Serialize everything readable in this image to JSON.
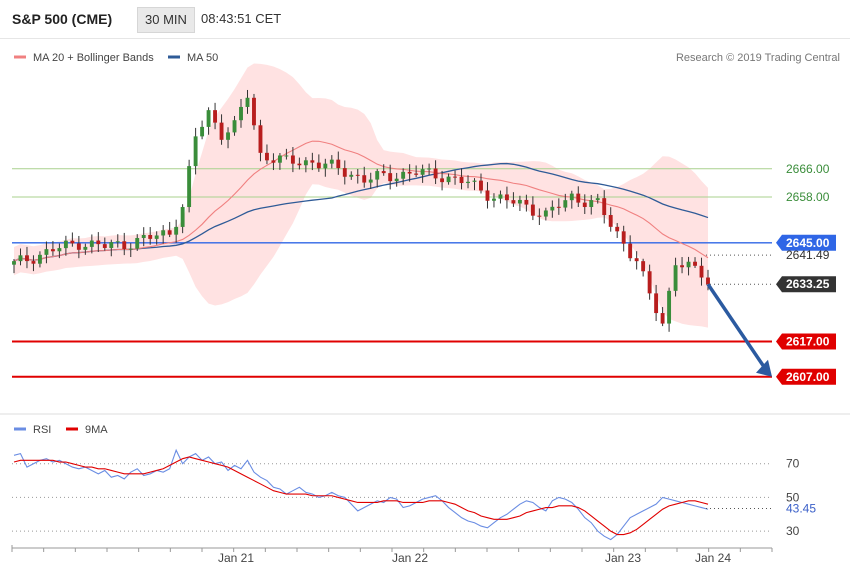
{
  "header": {
    "symbol": "S&P 500 (CME)",
    "timeframe": "30 MIN",
    "time": "08:43:51 CET"
  },
  "chart_data": [
    {
      "type": "candlestick",
      "legend": [
        {
          "label": "MA 20 + Bollinger Bands",
          "color": "#f08080"
        },
        {
          "label": "MA 50",
          "color": "#2f5b97"
        }
      ],
      "credit": "Research © 2019 Trading Central",
      "x_labels": [
        "Jan 21",
        "Jan 22",
        "Jan 23",
        "Jan 24"
      ],
      "ylim": [
        2597,
        2698
      ],
      "levels": [
        {
          "value": 2666.0,
          "label": "2666.00",
          "color": "#a9d18e",
          "style": "resistance"
        },
        {
          "value": 2658.0,
          "label": "2658.00",
          "color": "#a9d18e",
          "style": "resistance"
        },
        {
          "value": 2645.0,
          "label": "2645.00",
          "color": "#2f66e6",
          "style": "pivot"
        },
        {
          "value": 2617.0,
          "label": "2617.00",
          "color": "#e00000",
          "style": "support"
        },
        {
          "value": 2607.0,
          "label": "2607.00",
          "color": "#e00000",
          "style": "support"
        }
      ],
      "markers": [
        {
          "value": 2641.49,
          "label": "2641.49"
        },
        {
          "value": 2633.25,
          "label": "2633.25"
        }
      ],
      "forecast_arrow": {
        "from_value": 2633.25,
        "to_value": 2607.0,
        "color": "#2b5aa0"
      },
      "colors": {
        "up": "#3a8d3a",
        "down": "#b81e1e",
        "wick": "#333333",
        "band": "#ffe2e2",
        "ma20": "#f08080",
        "ma50": "#2f5b97"
      }
    },
    {
      "type": "line",
      "legend": [
        {
          "label": "RSI",
          "color": "#6a8de3"
        },
        {
          "label": "9MA",
          "color": "#e00000"
        }
      ],
      "ylim": [
        20,
        90
      ],
      "y_ticks": [
        30,
        50,
        70
      ],
      "current": {
        "value": 43.45,
        "label": "43.45"
      },
      "rsi": [
        75,
        76,
        68,
        70,
        72,
        73,
        71,
        72,
        70,
        68,
        67,
        68,
        66,
        64,
        66,
        62,
        63,
        61,
        65,
        67,
        63,
        64,
        66,
        65,
        67,
        78,
        70,
        74,
        76,
        72,
        74,
        70,
        71,
        66,
        69,
        67,
        72,
        65,
        62,
        60,
        56,
        55,
        52,
        54,
        56,
        53,
        52,
        50,
        51,
        53,
        51,
        50,
        46,
        42,
        44,
        46,
        48,
        47,
        50,
        49,
        44,
        45,
        47,
        49,
        50,
        51,
        48,
        44,
        41,
        38,
        36,
        35,
        33,
        32,
        35,
        38,
        40,
        43,
        46,
        48,
        47,
        44,
        42,
        48,
        50,
        49,
        47,
        43,
        38,
        35,
        30,
        27,
        25,
        28,
        33,
        38,
        40,
        42,
        44,
        46,
        50,
        49,
        48,
        47,
        46,
        45,
        44,
        43
      ],
      "ma9": [
        71,
        72,
        72,
        72,
        72,
        72,
        72,
        71,
        71,
        70,
        69,
        68,
        68,
        67,
        67,
        66,
        65,
        64,
        64,
        64,
        64,
        65,
        66,
        67,
        69,
        71,
        73,
        74,
        73,
        72,
        71,
        70,
        69,
        68,
        66,
        64,
        62,
        60,
        58,
        56,
        54,
        53,
        52,
        52,
        52,
        52,
        51,
        51,
        51,
        51,
        50,
        49,
        48,
        47,
        47,
        47,
        47,
        48,
        48,
        48,
        47,
        47,
        47,
        47,
        48,
        48,
        48,
        47,
        46,
        44,
        42,
        41,
        39,
        38,
        37,
        37,
        37,
        38,
        39,
        41,
        42,
        43,
        44,
        44,
        45,
        45,
        45,
        44,
        42,
        39,
        36,
        33,
        30,
        28,
        28,
        29,
        31,
        34,
        37,
        40,
        43,
        45,
        46,
        47,
        48,
        48,
        47,
        46
      ]
    }
  ]
}
